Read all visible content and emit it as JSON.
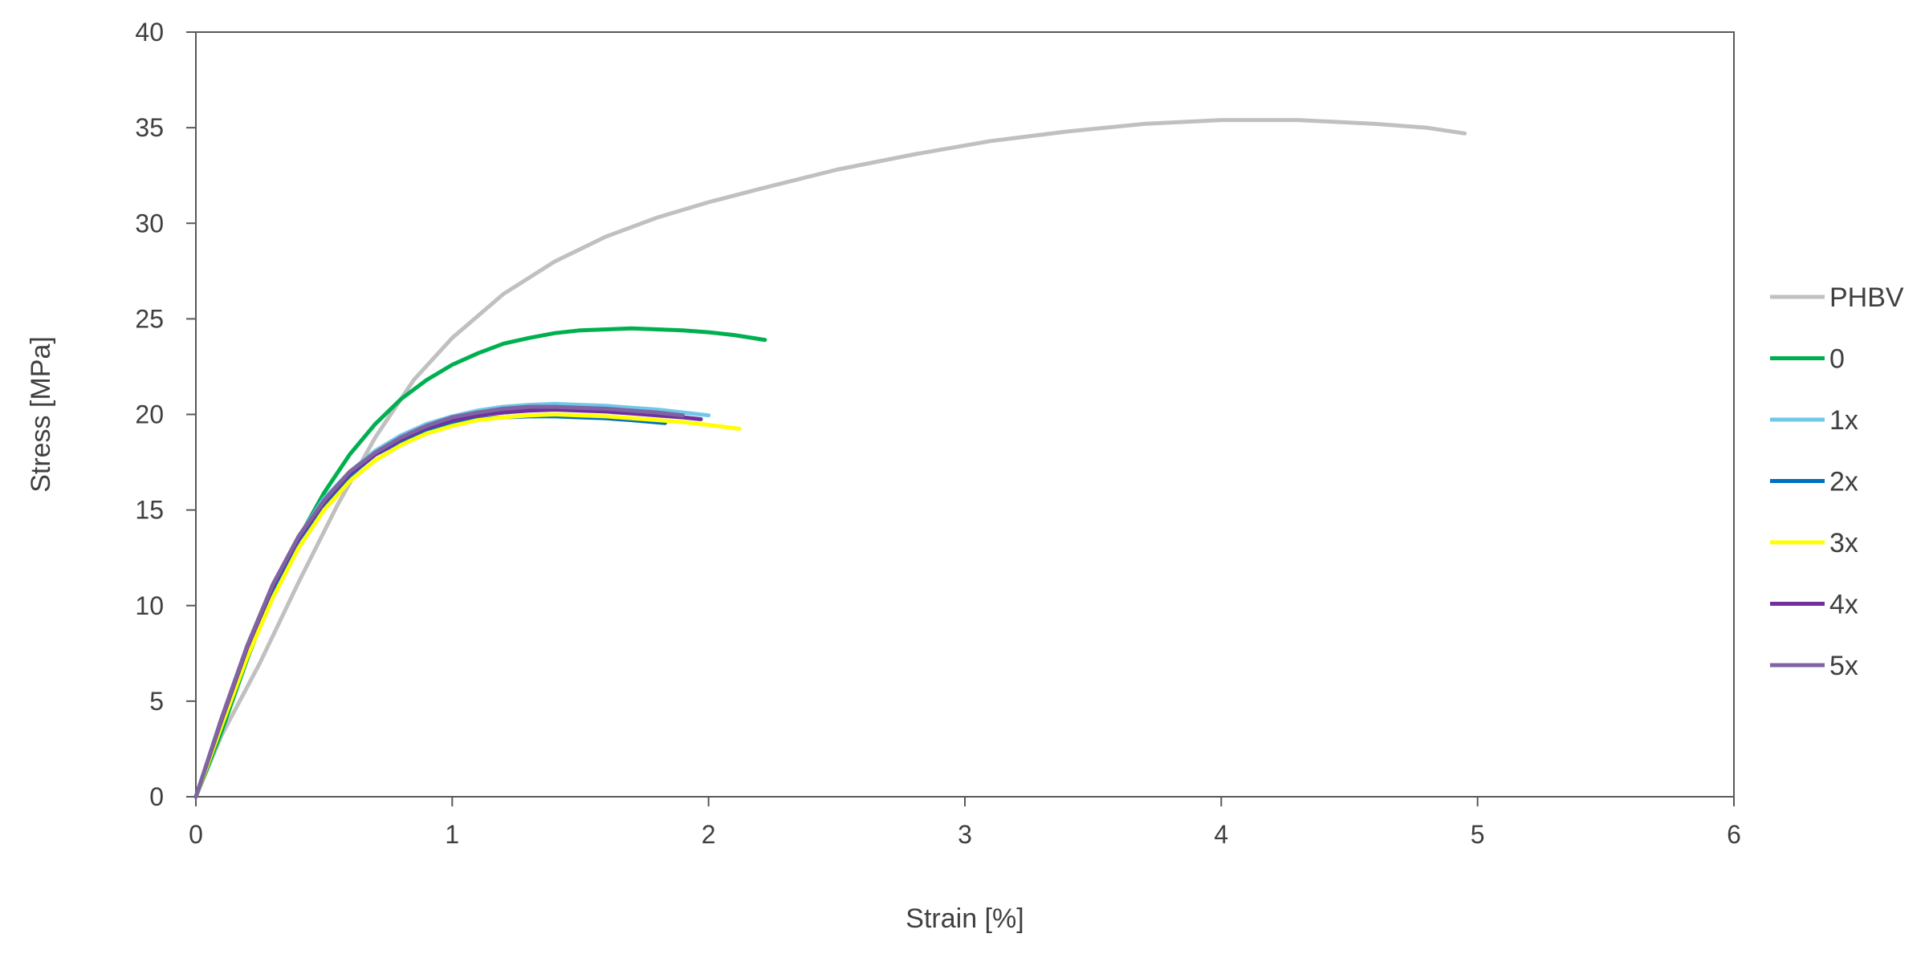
{
  "chart_data": {
    "type": "line",
    "xlabel": "Strain [%]",
    "ylabel": "Stress [MPa]",
    "xlim": [
      0,
      6
    ],
    "ylim": [
      0,
      40
    ],
    "xticks": [
      "0",
      "1",
      "2",
      "3",
      "4",
      "5",
      "6"
    ],
    "yticks": [
      "0",
      "5",
      "10",
      "15",
      "20",
      "25",
      "30",
      "35",
      "40"
    ],
    "grid": false,
    "legend_position": "right",
    "series": [
      {
        "name": "PHBV",
        "color": "#c0c0c0",
        "points": [
          [
            0,
            0
          ],
          [
            0.1,
            3.2
          ],
          [
            0.25,
            7
          ],
          [
            0.4,
            11.2
          ],
          [
            0.55,
            15.2
          ],
          [
            0.7,
            18.8
          ],
          [
            0.85,
            21.8
          ],
          [
            1.0,
            24.0
          ],
          [
            1.2,
            26.3
          ],
          [
            1.4,
            28.0
          ],
          [
            1.6,
            29.3
          ],
          [
            1.8,
            30.3
          ],
          [
            2.0,
            31.1
          ],
          [
            2.2,
            31.8
          ],
          [
            2.5,
            32.8
          ],
          [
            2.8,
            33.6
          ],
          [
            3.1,
            34.3
          ],
          [
            3.4,
            34.8
          ],
          [
            3.7,
            35.2
          ],
          [
            4.0,
            35.4
          ],
          [
            4.3,
            35.4
          ],
          [
            4.6,
            35.2
          ],
          [
            4.8,
            35.0
          ],
          [
            4.95,
            34.7
          ]
        ]
      },
      {
        "name": "0",
        "color": "#00b050",
        "points": [
          [
            0,
            0
          ],
          [
            0.1,
            3.4
          ],
          [
            0.2,
            7.2
          ],
          [
            0.3,
            10.6
          ],
          [
            0.4,
            13.5
          ],
          [
            0.5,
            15.9
          ],
          [
            0.6,
            17.9
          ],
          [
            0.7,
            19.5
          ],
          [
            0.8,
            20.8
          ],
          [
            0.9,
            21.8
          ],
          [
            1.0,
            22.6
          ],
          [
            1.1,
            23.2
          ],
          [
            1.2,
            23.7
          ],
          [
            1.3,
            24.0
          ],
          [
            1.4,
            24.25
          ],
          [
            1.5,
            24.4
          ],
          [
            1.6,
            24.45
          ],
          [
            1.7,
            24.5
          ],
          [
            1.8,
            24.45
          ],
          [
            1.9,
            24.4
          ],
          [
            2.0,
            24.3
          ],
          [
            2.1,
            24.15
          ],
          [
            2.22,
            23.9
          ]
        ]
      },
      {
        "name": "1x",
        "color": "#70c8e8",
        "points": [
          [
            0,
            0
          ],
          [
            0.1,
            4.0
          ],
          [
            0.2,
            7.8
          ],
          [
            0.3,
            11.0
          ],
          [
            0.4,
            13.6
          ],
          [
            0.5,
            15.6
          ],
          [
            0.6,
            17.0
          ],
          [
            0.7,
            18.1
          ],
          [
            0.8,
            18.9
          ],
          [
            0.9,
            19.5
          ],
          [
            1.0,
            19.9
          ],
          [
            1.1,
            20.2
          ],
          [
            1.2,
            20.4
          ],
          [
            1.3,
            20.5
          ],
          [
            1.4,
            20.55
          ],
          [
            1.5,
            20.5
          ],
          [
            1.6,
            20.45
          ],
          [
            1.7,
            20.35
          ],
          [
            1.8,
            20.25
          ],
          [
            1.9,
            20.1
          ],
          [
            2.0,
            19.95
          ]
        ]
      },
      {
        "name": "2x",
        "color": "#0070c0",
        "points": [
          [
            0,
            0
          ],
          [
            0.1,
            3.9
          ],
          [
            0.2,
            7.6
          ],
          [
            0.3,
            10.8
          ],
          [
            0.4,
            13.4
          ],
          [
            0.5,
            15.3
          ],
          [
            0.6,
            16.8
          ],
          [
            0.7,
            17.9
          ],
          [
            0.8,
            18.6
          ],
          [
            0.9,
            19.1
          ],
          [
            1.0,
            19.5
          ],
          [
            1.1,
            19.75
          ],
          [
            1.2,
            19.85
          ],
          [
            1.3,
            19.9
          ],
          [
            1.4,
            19.9
          ],
          [
            1.5,
            19.85
          ],
          [
            1.6,
            19.8
          ],
          [
            1.7,
            19.7
          ],
          [
            1.83,
            19.55
          ]
        ]
      },
      {
        "name": "3x",
        "color": "#ffff00",
        "points": [
          [
            0,
            0
          ],
          [
            0.1,
            3.7
          ],
          [
            0.2,
            7.3
          ],
          [
            0.3,
            10.4
          ],
          [
            0.4,
            13.0
          ],
          [
            0.5,
            15.0
          ],
          [
            0.6,
            16.5
          ],
          [
            0.7,
            17.6
          ],
          [
            0.8,
            18.4
          ],
          [
            0.9,
            19.0
          ],
          [
            1.0,
            19.4
          ],
          [
            1.1,
            19.7
          ],
          [
            1.2,
            19.85
          ],
          [
            1.3,
            19.95
          ],
          [
            1.4,
            20.0
          ],
          [
            1.5,
            19.95
          ],
          [
            1.6,
            19.9
          ],
          [
            1.7,
            19.8
          ],
          [
            1.8,
            19.7
          ],
          [
            1.9,
            19.6
          ],
          [
            2.0,
            19.45
          ],
          [
            2.12,
            19.25
          ]
        ]
      },
      {
        "name": "4x",
        "color": "#7030a0",
        "points": [
          [
            0,
            0
          ],
          [
            0.1,
            4.0
          ],
          [
            0.2,
            7.8
          ],
          [
            0.3,
            11.0
          ],
          [
            0.4,
            13.5
          ],
          [
            0.5,
            15.4
          ],
          [
            0.6,
            16.9
          ],
          [
            0.7,
            17.9
          ],
          [
            0.8,
            18.7
          ],
          [
            0.9,
            19.3
          ],
          [
            1.0,
            19.7
          ],
          [
            1.1,
            19.95
          ],
          [
            1.2,
            20.1
          ],
          [
            1.3,
            20.2
          ],
          [
            1.4,
            20.25
          ],
          [
            1.5,
            20.2
          ],
          [
            1.6,
            20.15
          ],
          [
            1.7,
            20.05
          ],
          [
            1.8,
            19.95
          ],
          [
            1.9,
            19.85
          ],
          [
            1.97,
            19.75
          ]
        ]
      },
      {
        "name": "5x",
        "color": "#8064a2",
        "points": [
          [
            0,
            0
          ],
          [
            0.1,
            4.1
          ],
          [
            0.2,
            7.9
          ],
          [
            0.3,
            11.1
          ],
          [
            0.4,
            13.6
          ],
          [
            0.5,
            15.5
          ],
          [
            0.6,
            17.0
          ],
          [
            0.7,
            18.0
          ],
          [
            0.8,
            18.8
          ],
          [
            0.9,
            19.4
          ],
          [
            1.0,
            19.85
          ],
          [
            1.1,
            20.1
          ],
          [
            1.2,
            20.3
          ],
          [
            1.3,
            20.4
          ],
          [
            1.4,
            20.4
          ],
          [
            1.5,
            20.35
          ],
          [
            1.6,
            20.3
          ],
          [
            1.7,
            20.2
          ],
          [
            1.8,
            20.1
          ],
          [
            1.9,
            19.95
          ]
        ]
      }
    ]
  }
}
